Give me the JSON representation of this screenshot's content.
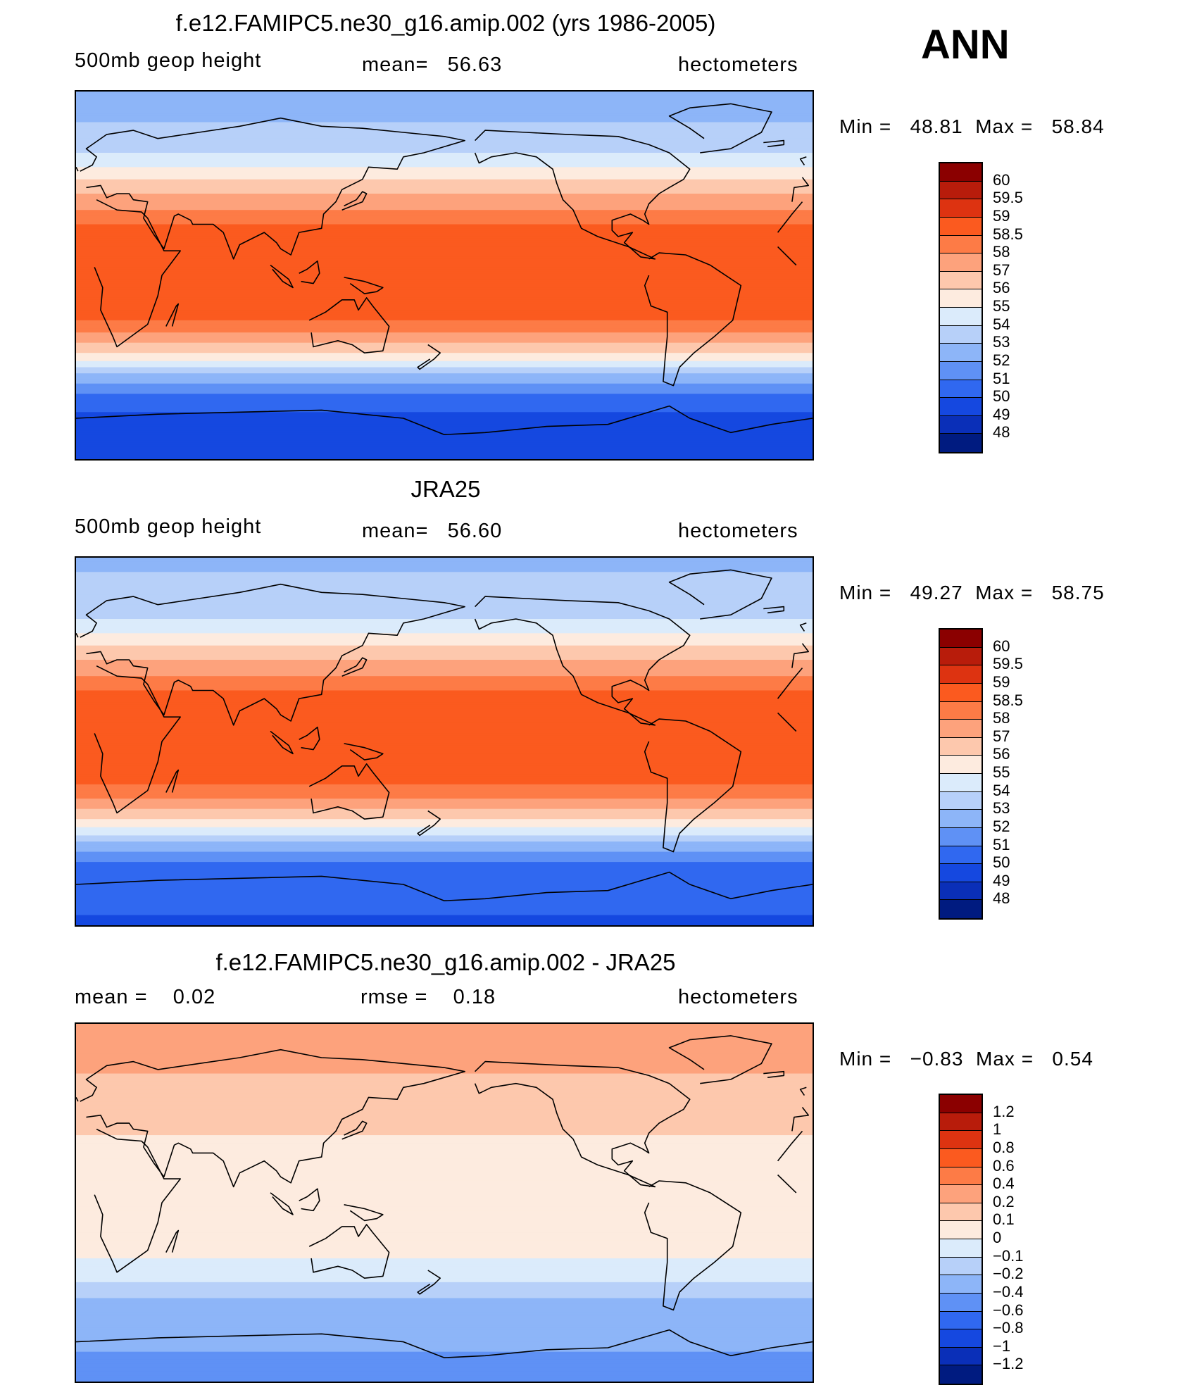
{
  "season": "ANN",
  "chart_data": [
    {
      "type": "heatmap",
      "title": "f.e12.FAMIPC5.ne30_g16.amip.002 (yrs 1986-2005)",
      "left_label": "500mb geop height",
      "center_label": "mean=",
      "center_value": "56.63",
      "right_label": "hectometers",
      "min_label": "Min =",
      "min_value": "48.81",
      "max_label": "Max =",
      "max_value": "58.84",
      "colorbar_labels": [
        "60",
        "59.5",
        "59",
        "58.5",
        "58",
        "57",
        "56",
        "55",
        "54",
        "53",
        "52",
        "51",
        "50",
        "49",
        "48"
      ],
      "colorbar_colors": [
        "#8b0000",
        "#b81c0b",
        "#dd3311",
        "#fb5a1f",
        "#fd7b46",
        "#fda27c",
        "#fdc8ad",
        "#fdebdf",
        "#dbebfb",
        "#b7d0f9",
        "#8db5f8",
        "#5f91f5",
        "#3068f0",
        "#1548e0",
        "#0a2fb8",
        "#001b80"
      ],
      "zonal_bands": [
        {
          "lat": 90,
          "value": 52.5
        },
        {
          "lat": 75,
          "value": 53.0
        },
        {
          "lat": 60,
          "value": 54.0
        },
        {
          "lat": 50,
          "value": 55.5
        },
        {
          "lat": 40,
          "value": 57.0
        },
        {
          "lat": 30,
          "value": 58.3
        },
        {
          "lat": 20,
          "value": 58.7
        },
        {
          "lat": 0,
          "value": 58.8
        },
        {
          "lat": -20,
          "value": 58.7
        },
        {
          "lat": -30,
          "value": 57.8
        },
        {
          "lat": -40,
          "value": 55.5
        },
        {
          "lat": -50,
          "value": 52.5
        },
        {
          "lat": -60,
          "value": 50.5
        },
        {
          "lat": -70,
          "value": 49.8
        },
        {
          "lat": -80,
          "value": 49.4
        },
        {
          "lat": -90,
          "value": 49.2
        }
      ]
    },
    {
      "type": "heatmap",
      "title": "JRA25",
      "left_label": "500mb geop height",
      "center_label": "mean=",
      "center_value": "56.60",
      "right_label": "hectometers",
      "min_label": "Min =",
      "min_value": "49.27",
      "max_label": "Max =",
      "max_value": "58.75",
      "colorbar_labels": [
        "60",
        "59.5",
        "59",
        "58.5",
        "58",
        "57",
        "56",
        "55",
        "54",
        "53",
        "52",
        "51",
        "50",
        "49",
        "48"
      ],
      "colorbar_colors": [
        "#8b0000",
        "#b81c0b",
        "#dd3311",
        "#fb5a1f",
        "#fd7b46",
        "#fda27c",
        "#fdc8ad",
        "#fdebdf",
        "#dbebfb",
        "#b7d0f9",
        "#8db5f8",
        "#5f91f5",
        "#3068f0",
        "#1548e0",
        "#0a2fb8",
        "#001b80"
      ],
      "zonal_bands": [
        {
          "lat": 90,
          "value": 52.8
        },
        {
          "lat": 75,
          "value": 53.2
        },
        {
          "lat": 60,
          "value": 54.0
        },
        {
          "lat": 50,
          "value": 55.5
        },
        {
          "lat": 40,
          "value": 57.0
        },
        {
          "lat": 30,
          "value": 58.3
        },
        {
          "lat": 20,
          "value": 58.7
        },
        {
          "lat": 0,
          "value": 58.7
        },
        {
          "lat": -20,
          "value": 58.6
        },
        {
          "lat": -30,
          "value": 57.8
        },
        {
          "lat": -40,
          "value": 55.5
        },
        {
          "lat": -50,
          "value": 52.8
        },
        {
          "lat": -60,
          "value": 50.8
        },
        {
          "lat": -70,
          "value": 50.3
        },
        {
          "lat": -80,
          "value": 50.2
        },
        {
          "lat": -90,
          "value": 49.8
        }
      ]
    },
    {
      "type": "heatmap",
      "title": "f.e12.FAMIPC5.ne30_g16.amip.002 - JRA25",
      "left_label": "mean =",
      "left_value": "0.02",
      "center_label": "rmse =",
      "center_value": "0.18",
      "right_label": "hectometers",
      "min_label": "Min =",
      "min_value": "−0.83",
      "max_label": "Max =",
      "max_value": "0.54",
      "colorbar_labels": [
        "1.2",
        "1",
        "0.8",
        "0.6",
        "0.4",
        "0.2",
        "0.1",
        "0",
        "−0.1",
        "−0.2",
        "−0.4",
        "−0.6",
        "−0.8",
        "−1",
        "−1.2"
      ],
      "colorbar_colors": [
        "#8b0000",
        "#b81c0b",
        "#dd3311",
        "#fb5a1f",
        "#fd7b46",
        "#fda27c",
        "#fdc8ad",
        "#fdebdf",
        "#dbebfb",
        "#b7d0f9",
        "#8db5f8",
        "#5f91f5",
        "#3068f0",
        "#1548e0",
        "#0a2fb8",
        "#001b80"
      ],
      "zonal_bands": [
        {
          "lat": 90,
          "value": 0.35
        },
        {
          "lat": 75,
          "value": 0.3
        },
        {
          "lat": 65,
          "value": 0.2
        },
        {
          "lat": 50,
          "value": 0.15
        },
        {
          "lat": 40,
          "value": 0.12
        },
        {
          "lat": 20,
          "value": 0.05
        },
        {
          "lat": 0,
          "value": 0.05
        },
        {
          "lat": -20,
          "value": 0.05
        },
        {
          "lat": -35,
          "value": -0.05
        },
        {
          "lat": -45,
          "value": -0.15
        },
        {
          "lat": -55,
          "value": -0.3
        },
        {
          "lat": -65,
          "value": -0.35
        },
        {
          "lat": -75,
          "value": -0.4
        },
        {
          "lat": -90,
          "value": -0.45
        }
      ]
    }
  ]
}
